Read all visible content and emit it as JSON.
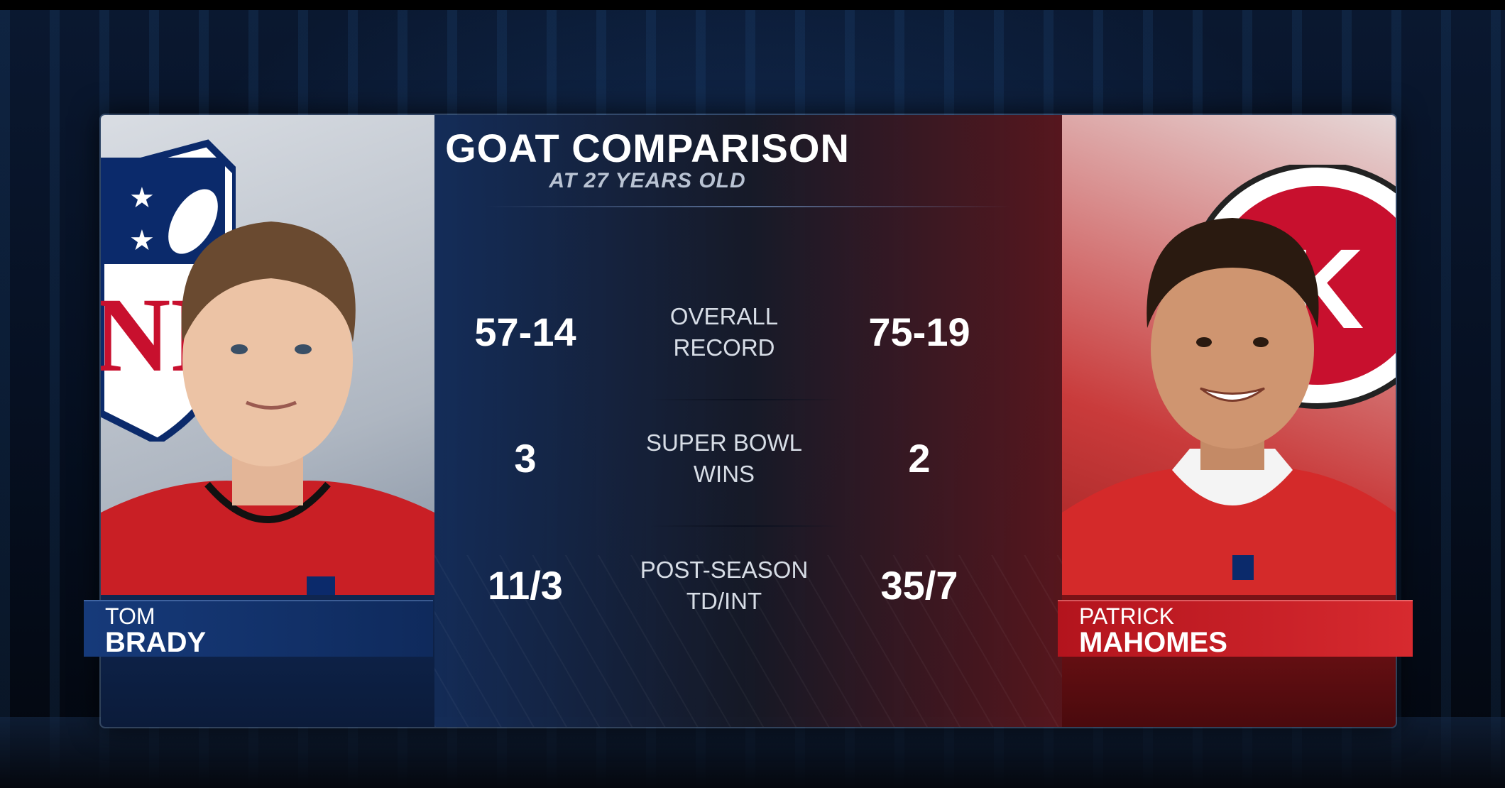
{
  "graphic": {
    "title": "GOAT COMPARISON",
    "subtitle": "AT 27 YEARS OLD"
  },
  "players": {
    "left": {
      "first_name": "TOM",
      "last_name": "BRADY",
      "team_color": "#0f2a5c"
    },
    "right": {
      "first_name": "PATRICK",
      "last_name": "MAHOMES",
      "team_color": "#c8102e"
    }
  },
  "stats": [
    {
      "label_line1": "OVERALL",
      "label_line2": "RECORD",
      "left": "57-14",
      "right": "75-19"
    },
    {
      "label_line1": "SUPER BOWL",
      "label_line2": "WINS",
      "left": "3",
      "right": "2"
    },
    {
      "label_line1": "POST-SEASON",
      "label_line2": "TD/INT",
      "left": "11/3",
      "right": "35/7"
    }
  ],
  "logos": {
    "left_logo": "nfl-shield-logo",
    "right_logo": "chiefs-arrowhead-logo"
  }
}
